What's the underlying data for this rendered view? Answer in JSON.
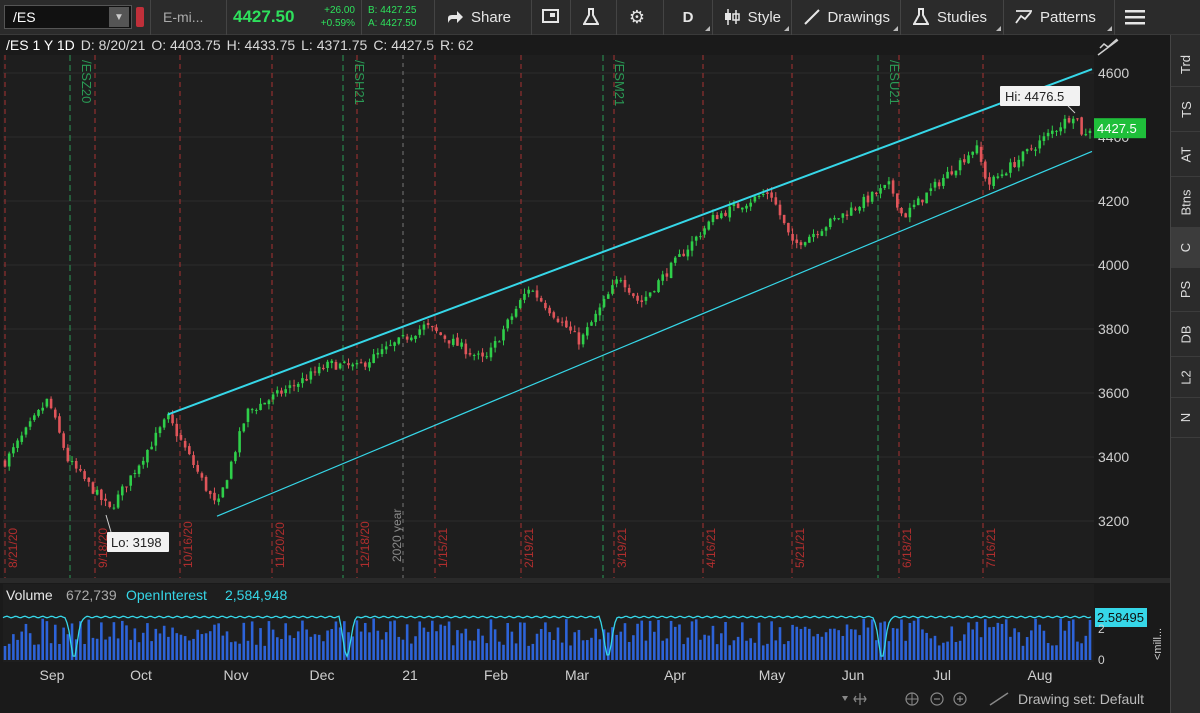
{
  "toolbar": {
    "symbol": "/ES",
    "description": "E-mi...",
    "last": "4427.50",
    "net_change": "+26.00",
    "pct_change": "+0.59%",
    "bid": "B: 4427.25",
    "ask": "A: 4427.50",
    "share_label": "Share",
    "aggregation": "D",
    "style_label": "Style",
    "drawings_label": "Drawings",
    "studies_label": "Studies",
    "patterns_label": "Patterns"
  },
  "info": {
    "title": "/ES 1 Y 1D",
    "date": "D: 8/20/21",
    "open": "O: 4403.75",
    "high": "H: 4433.75",
    "low": "L: 4371.75",
    "close": "C: 4427.5",
    "range": "R: 62"
  },
  "price_axis": {
    "ticks": [
      3200,
      3400,
      3600,
      3800,
      4000,
      4200,
      4400,
      4600
    ],
    "last_label": "4427.5",
    "last_value": 4427.5
  },
  "annotations": {
    "hi_label": "Hi: 4476.5",
    "lo_label": "Lo: 3198",
    "year_label": "2020 year"
  },
  "contract_markers": [
    "/ESZ20",
    "/ESH21",
    "/ESM21",
    "/ESU21"
  ],
  "date_markers": [
    "8/21/20",
    "9/18/20",
    "10/16/20",
    "11/20/20",
    "12/18/20",
    "1/15/21",
    "2/19/21",
    "3/19/21",
    "4/16/21",
    "5/21/21",
    "6/18/21",
    "7/16/21"
  ],
  "volume": {
    "label": "Volume",
    "value": "672,739",
    "oi_label": "OpenInterest",
    "oi_value": "2,584,948",
    "axis_value": "2.58495",
    "tick": "2",
    "zero": "0",
    "unit": "<mill..."
  },
  "time_axis": [
    "Sep",
    "Oct",
    "Nov",
    "Dec",
    "21",
    "Feb",
    "Mar",
    "Apr",
    "May",
    "Jun",
    "Jul",
    "Aug"
  ],
  "footer": {
    "drawing_set": "Drawing set: Default"
  },
  "right_tabs": [
    "Trd",
    "TS",
    "AT",
    "Btns",
    "C",
    "PS",
    "DB",
    "L2",
    "N"
  ],
  "colors": {
    "up": "#2fcf4a",
    "down": "#e0555a",
    "channel": "#36d7e8",
    "last_price": "#1fbf3a",
    "contract_marker": "#2a9a55",
    "date_marker": "#a83232",
    "volume_bar": "#2d63d8"
  },
  "chart_data": {
    "type": "candlestick",
    "symbol": "/ES",
    "ylim": [
      3100,
      4650
    ],
    "milestones": [
      {
        "date": "8/21/20",
        "close": 3385
      },
      {
        "date": "9/2/20",
        "close": 3580
      },
      {
        "date": "9/9/20",
        "close": 3390
      },
      {
        "date": "9/23/20",
        "close": 3235
      },
      {
        "date": "10/12/20",
        "close": 3525
      },
      {
        "date": "10/30/20",
        "close": 3240
      },
      {
        "date": "11/9/20",
        "close": 3540
      },
      {
        "date": "12/8/20",
        "close": 3690
      },
      {
        "date": "12/21/20",
        "close": 3680
      },
      {
        "date": "1/8/21",
        "close": 3810
      },
      {
        "date": "1/29/21",
        "close": 3700
      },
      {
        "date": "2/12/21",
        "close": 3930
      },
      {
        "date": "3/4/21",
        "close": 3760
      },
      {
        "date": "3/17/21",
        "close": 3965
      },
      {
        "date": "3/24/21",
        "close": 3880
      },
      {
        "date": "4/15/21",
        "close": 4150
      },
      {
        "date": "5/7/21",
        "close": 4230
      },
      {
        "date": "5/12/21",
        "close": 4060
      },
      {
        "date": "6/14/21",
        "close": 4250
      },
      {
        "date": "6/18/21",
        "close": 4150
      },
      {
        "date": "7/14/21",
        "close": 4370
      },
      {
        "date": "7/19/21",
        "close": 4250
      },
      {
        "date": "8/16/21",
        "close": 4476
      },
      {
        "date": "8/19/21",
        "close": 4395
      },
      {
        "date": "8/20/21",
        "close": 4427.5
      }
    ],
    "channel_upper": [
      [
        3533,
        4612
      ]
    ],
    "channel_lower": [
      [
        3215,
        4355
      ]
    ],
    "hi": 4476.5,
    "lo": 3198
  }
}
